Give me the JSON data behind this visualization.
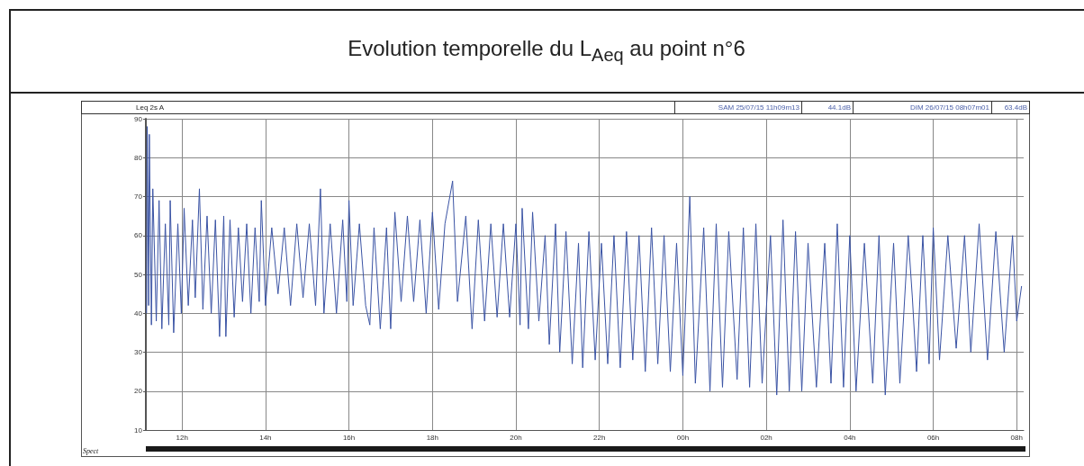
{
  "chart_data": {
    "type": "line",
    "title": "Evolution temporelle du L$_{Aeq}$ au point n°6",
    "annotations": [
      "Leq 2s A",
      "SAM 25/07/15 11h09m13",
      "44.1dB",
      "DIM 26/07/15 08h07m01",
      "63.4dB",
      "Spect"
    ],
    "x": [
      "--07-25T11:09",
      "--07-25T11:10",
      "--07-25T11:12",
      "--07-25T11:13",
      "--07-25T11:16",
      "--07-25T11:18",
      "--07-25T11:23",
      "--07-25T11:27",
      "--07-25T11:31",
      "--07-25T11:36",
      "--07-25T11:41",
      "--07-25T11:43",
      "--07-25T11:48",
      "--07-25T11:54",
      "--07-25T11:59",
      "--07-25T12:03",
      "--07-25T12:09",
      "--07-25T12:15",
      "--07-25T12:19",
      "--07-25T12:25",
      "--07-25T12:30",
      "--07-25T12:36",
      "--07-25T12:42",
      "--07-25T12:48",
      "--07-25T12:54",
      "--07-25T13:00",
      "--07-25T13:03",
      "--07-25T13:09",
      "--07-25T13:15",
      "--07-25T13:21",
      "--07-25T13:27",
      "--07-25T13:33",
      "--07-25T13:39",
      "--07-25T13:45",
      "--07-25T13:51",
      "--07-25T13:54",
      "--07-25T14:00",
      "--07-25T14:09",
      "--07-25T14:18",
      "--07-25T14:27",
      "--07-25T14:36",
      "--07-25T14:45",
      "--07-25T14:54",
      "--07-25T15:03",
      "--07-25T15:12",
      "--07-25T15:19",
      "--07-25T15:24",
      "--07-25T15:33",
      "--07-25T15:42",
      "--07-25T15:51",
      "--07-25T15:57",
      "--07-25T16:00",
      "--07-25T16:06",
      "--07-25T16:15",
      "--07-25T16:24",
      "--07-25T16:30",
      "--07-25T16:36",
      "--07-25T16:45",
      "--07-25T16:54",
      "--07-25T17:00",
      "--07-25T17:06",
      "--07-25T17:15",
      "--07-25T17:24",
      "--07-25T17:33",
      "--07-25T17:42",
      "--07-25T17:51",
      "--07-25T18:00",
      "--07-25T18:09",
      "--07-25T18:18",
      "--07-25T18:29",
      "--07-25T18:36",
      "--07-25T18:48",
      "--07-25T18:57",
      "--07-25T19:06",
      "--07-25T19:15",
      "--07-25T19:24",
      "--07-25T19:33",
      "--07-25T19:42",
      "--07-25T19:51",
      "--07-25T20:00",
      "--07-25T20:06",
      "--07-25T20:09",
      "--07-25T20:18",
      "--07-25T20:24",
      "--07-25T20:33",
      "--07-25T20:42",
      "--07-25T20:48",
      "--07-25T20:57",
      "--07-25T21:03",
      "--07-25T21:12",
      "--07-25T21:21",
      "--07-25T21:30",
      "--07-25T21:36",
      "--07-25T21:45",
      "--07-25T21:54",
      "--07-25T22:03",
      "--07-25T22:12",
      "--07-25T22:21",
      "--07-25T22:30",
      "--07-25T22:39",
      "--07-25T22:48",
      "--07-25T22:57",
      "--07-25T23:06",
      "--07-25T23:15",
      "--07-25T23:24",
      "--07-25T23:33",
      "--07-25T23:42",
      "--07-25T23:51",
      "--07-26T00:00",
      "--07-26T00:10",
      "--07-26T00:18",
      "--07-26T00:30",
      "--07-26T00:39",
      "--07-26T00:48",
      "--07-26T00:57",
      "--07-26T01:06",
      "--07-26T01:18",
      "--07-26T01:27",
      "--07-26T01:36",
      "--07-26T01:45",
      "--07-26T01:54",
      "--07-26T02:06",
      "--07-26T02:15",
      "--07-26T02:24",
      "--07-26T02:33",
      "--07-26T02:42",
      "--07-26T02:51",
      "--07-26T03:00",
      "--07-26T03:12",
      "--07-26T03:24",
      "--07-26T03:33",
      "--07-26T03:42",
      "--07-26T03:51",
      "--07-26T04:00",
      "--07-26T04:09",
      "--07-26T04:21",
      "--07-26T04:33",
      "--07-26T04:42",
      "--07-26T04:51",
      "--07-26T05:03",
      "--07-26T05:12",
      "--07-26T05:24",
      "--07-26T05:30",
      "--07-26T05:36",
      "--07-26T05:45",
      "--07-26T05:54",
      "--07-26T06:00",
      "--07-26T06:09",
      "--07-26T06:21",
      "--07-26T06:33",
      "--07-26T06:45",
      "--07-26T06:54",
      "--07-26T07:06",
      "--07-26T07:18",
      "--07-26T07:30",
      "--07-26T07:42",
      "--07-26T07:54",
      "--07-26T08:00",
      "--07-26T08:07"
    ],
    "series": [
      {
        "color": "#3a53a4",
        "values": [
          40,
          88,
          42,
          86,
          37,
          72,
          38,
          69,
          36,
          63,
          37,
          69,
          35,
          63,
          40,
          67,
          42,
          64,
          44,
          72,
          41,
          65,
          40,
          64,
          34,
          65,
          34,
          64,
          39,
          62,
          43,
          63,
          40,
          62,
          43,
          69,
          42,
          62,
          45,
          62,
          42,
          63,
          44,
          63,
          42,
          72,
          40,
          63,
          40,
          64,
          43,
          69,
          42,
          63,
          42,
          37,
          62,
          36,
          62,
          36,
          66,
          43,
          65,
          43,
          64,
          40,
          66,
          41,
          63,
          74,
          43,
          65,
          36,
          64,
          38,
          63,
          39,
          63,
          39,
          63,
          37,
          67,
          36,
          66,
          38,
          60,
          32,
          63,
          30,
          61,
          27,
          58,
          26,
          61,
          28,
          58,
          27,
          60,
          26,
          61,
          28,
          60,
          25,
          62,
          27,
          60,
          25,
          58,
          24,
          70,
          22,
          62,
          20,
          63,
          21,
          61,
          23,
          62,
          21,
          63,
          22,
          60,
          19,
          64,
          20,
          61,
          20,
          58,
          21,
          58,
          22,
          63,
          21,
          60,
          20,
          58,
          22,
          60,
          19,
          58,
          22,
          60,
          44,
          25,
          60,
          27,
          62,
          28,
          60,
          31,
          60,
          30,
          63,
          28,
          61,
          30,
          60,
          38,
          47
        ]
      }
    ],
    "xlim": [
      "--07-25T11:08",
      "--07-26T08:10"
    ],
    "xticks": [
      {
        "value": "--07-25T12:00",
        "label": "12h"
      },
      {
        "value": "--07-25T14:00",
        "label": "14h"
      },
      {
        "value": "--07-25T16:00",
        "label": "16h"
      },
      {
        "value": "--07-25T18:00",
        "label": "18h"
      },
      {
        "value": "--07-25T20:00",
        "label": "20h"
      },
      {
        "value": "--07-25T22:00",
        "label": "22h"
      },
      {
        "value": "--07-26T00:00",
        "label": "00h"
      },
      {
        "value": "--07-26T02:00",
        "label": "02h"
      },
      {
        "value": "--07-26T04:00",
        "label": "04h"
      },
      {
        "value": "--07-26T06:00",
        "label": "06h"
      },
      {
        "value": "--07-26T08:00",
        "label": "08h"
      }
    ],
    "ylim": [
      10,
      90
    ],
    "yticks": [
      10,
      20,
      30,
      40,
      50,
      60,
      70,
      80,
      90
    ],
    "grid": true,
    "marker": "none",
    "line_style": "solid"
  }
}
